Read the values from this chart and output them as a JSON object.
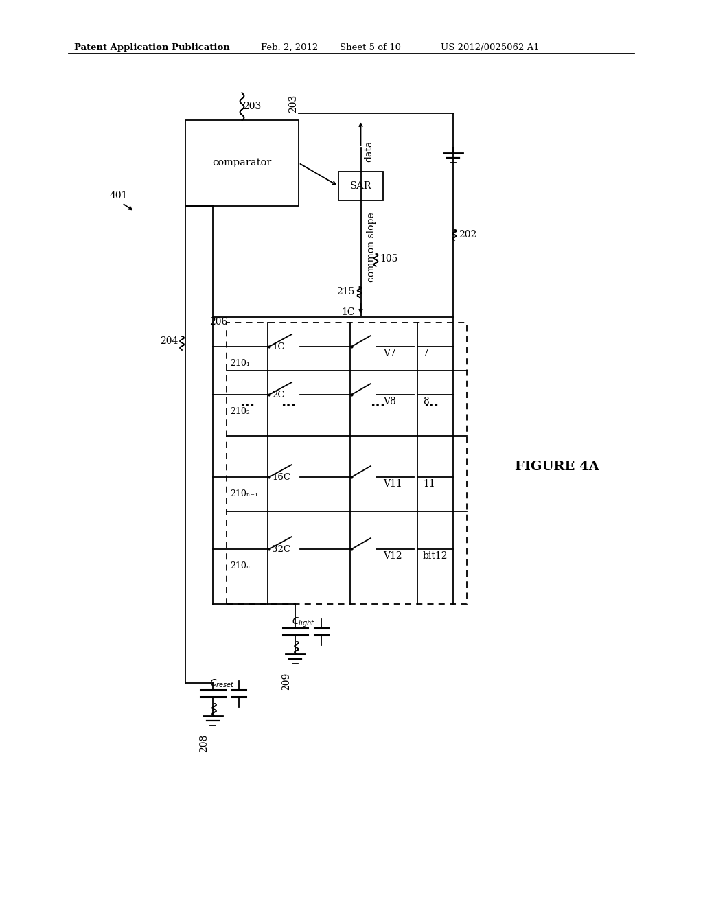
{
  "bg": "#ffffff",
  "lc": "#000000",
  "header_left": "Patent Application Publication",
  "header_date": "Feb. 2, 2012",
  "header_sheet": "Sheet 5 of 10",
  "header_patent": "US 2012/0025062 A1",
  "figure_label": "FIGURE 4A",
  "ref_401": "401",
  "ref_203": "203",
  "ref_204": "204",
  "ref_206": "206",
  "ref_215": "215",
  "ref_105": "105",
  "ref_202": "202",
  "ref_209": "209",
  "ref_208": "208",
  "comparator_text": "comparator",
  "sar_text": "SAR",
  "data_text": "data",
  "common_slope_text": "common slope",
  "cap1C_label": "1C",
  "rows": [
    {
      "sub": "210₁",
      "cap": "1C",
      "volt": "V7",
      "bit": "7"
    },
    {
      "sub": "210₂",
      "cap": "2C",
      "volt": "V8",
      "bit": "8"
    },
    {
      "sub": "210ₙ₋₁",
      "cap": "16C",
      "volt": "V11",
      "bit": "11"
    },
    {
      "sub": "210ₙ",
      "cap": "32C",
      "volt": "V12",
      "bit": "bit12"
    }
  ],
  "clabel": "C",
  "clabel_light_sub": "light",
  "clabel_reset_sub": "reset"
}
